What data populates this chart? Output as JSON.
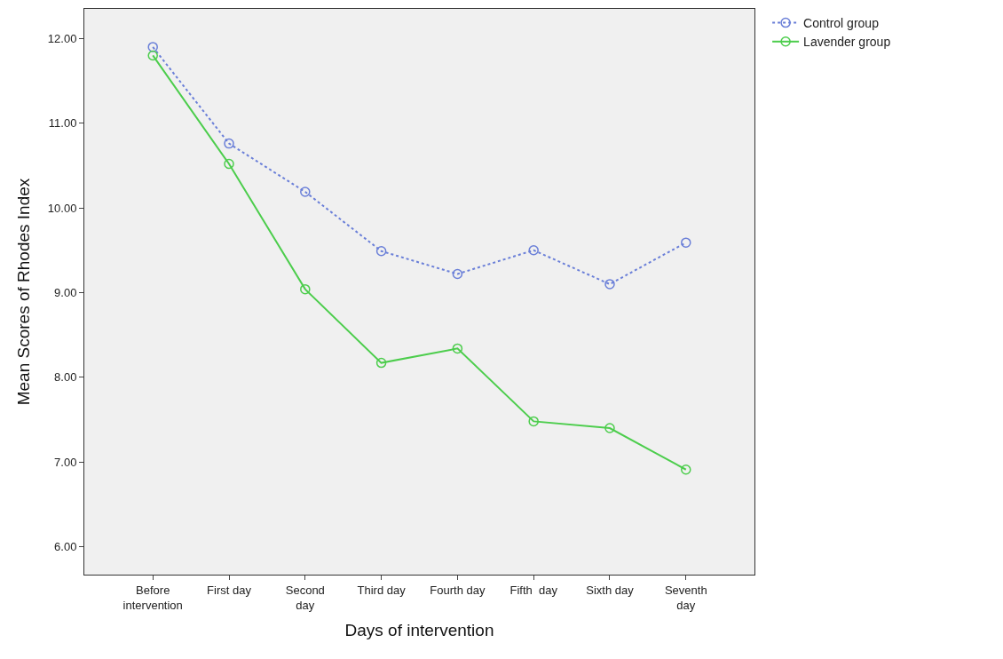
{
  "chart_data": {
    "type": "line",
    "xlabel": "Days of intervention",
    "ylabel": "Mean Scores of Rhodes Index",
    "categories": [
      "Before\nintervention",
      "First day",
      "Second\nday",
      "Third day",
      "Fourth day",
      "Fifth  day",
      "Sixth day",
      "Seventh\nday"
    ],
    "series": [
      {
        "name": "Control group",
        "color": "#6a7fd8",
        "line_style": "dotted",
        "values": [
          11.9,
          10.76,
          10.19,
          9.49,
          9.22,
          9.5,
          9.1,
          9.59
        ]
      },
      {
        "name": "Lavender group",
        "color": "#4ccd4c",
        "line_style": "solid",
        "values": [
          11.8,
          10.52,
          9.04,
          8.17,
          8.34,
          7.48,
          7.4,
          6.91
        ]
      }
    ],
    "ylim": [
      5.67,
      12.35
    ],
    "yticks": [
      {
        "value": 6,
        "label": "6.00"
      },
      {
        "value": 7,
        "label": "7.00"
      },
      {
        "value": 8,
        "label": "8.00"
      },
      {
        "value": 9,
        "label": "9.00"
      },
      {
        "value": 10,
        "label": "10.00"
      },
      {
        "value": 11,
        "label": "11.00"
      },
      {
        "value": 12,
        "label": "12.00"
      }
    ],
    "marker": "circle",
    "grid": false,
    "legend": "top right"
  }
}
